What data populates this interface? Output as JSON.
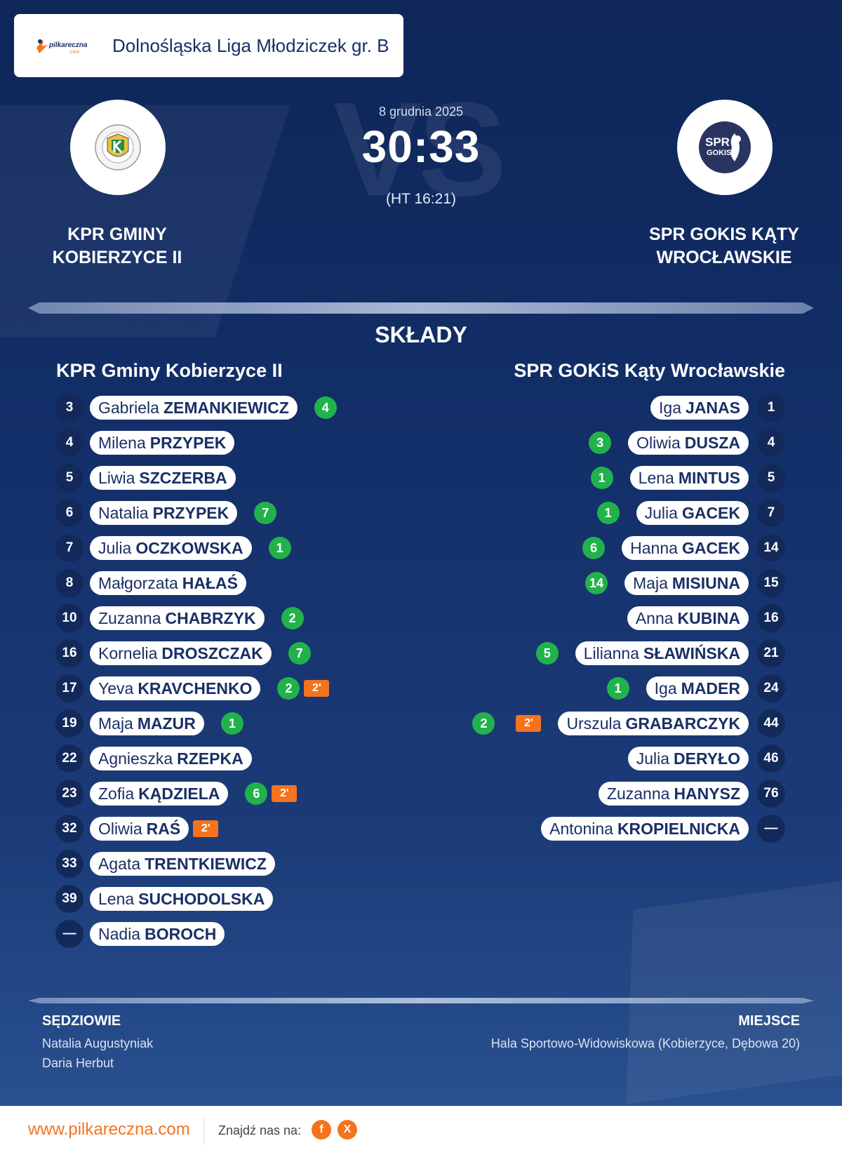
{
  "league": {
    "title": "Dolnośląska Liga Młodziczek gr. B",
    "logo_text": "pilkareczna",
    "logo_sub": ".com"
  },
  "match": {
    "date": "8 grudnia 2025",
    "score": "30:33",
    "halftime": "(HT 16:21)",
    "vs_text": "VS"
  },
  "home_team": {
    "name_line1": "KPR GMINY",
    "name_line2": "KOBIERZYCE II",
    "squad_title": "KPR Gminy Kobierzyce II"
  },
  "away_team": {
    "name_line1": "SPR GOKIS KĄTY",
    "name_line2": "WROCŁAWSKIE",
    "squad_title": "SPR GOKiS Kąty Wrocławskie",
    "logo_text1": "SPR",
    "logo_text2": "GOKIS"
  },
  "section_title": "SKŁADY",
  "home_players": [
    {
      "num": "3",
      "first": "Gabriela",
      "last": "ZEMANKIEWICZ",
      "goals": "4",
      "pen": ""
    },
    {
      "num": "4",
      "first": "Milena",
      "last": "PRZYPEK",
      "goals": "",
      "pen": ""
    },
    {
      "num": "5",
      "first": "Liwia",
      "last": "SZCZERBA",
      "goals": "",
      "pen": ""
    },
    {
      "num": "6",
      "first": "Natalia",
      "last": "PRZYPEK",
      "goals": "7",
      "pen": ""
    },
    {
      "num": "7",
      "first": "Julia",
      "last": "OCZKOWSKA",
      "goals": "1",
      "pen": ""
    },
    {
      "num": "8",
      "first": "Małgorzata",
      "last": "HAŁAŚ",
      "goals": "",
      "pen": ""
    },
    {
      "num": "10",
      "first": "Zuzanna",
      "last": "CHABRZYK",
      "goals": "2",
      "pen": ""
    },
    {
      "num": "16",
      "first": "Kornelia",
      "last": "DROSZCZAK",
      "goals": "7",
      "pen": ""
    },
    {
      "num": "17",
      "first": "Yeva",
      "last": "KRAVCHENKO",
      "goals": "2",
      "pen": "2'"
    },
    {
      "num": "19",
      "first": "Maja",
      "last": "MAZUR",
      "goals": "1",
      "pen": ""
    },
    {
      "num": "22",
      "first": "Agnieszka",
      "last": "RZEPKA",
      "goals": "",
      "pen": ""
    },
    {
      "num": "23",
      "first": "Zofia",
      "last": "KĄDZIELA",
      "goals": "6",
      "pen": "2'"
    },
    {
      "num": "32",
      "first": "Oliwia",
      "last": "RAŚ",
      "goals": "",
      "pen": "2'"
    },
    {
      "num": "33",
      "first": "Agata",
      "last": "TRENTKIEWICZ",
      "goals": "",
      "pen": ""
    },
    {
      "num": "39",
      "first": "Lena",
      "last": "SUCHODOLSKA",
      "goals": "",
      "pen": ""
    },
    {
      "num": "—",
      "first": "Nadia",
      "last": "BOROCH",
      "goals": "",
      "pen": ""
    }
  ],
  "away_players": [
    {
      "num": "1",
      "first": "Iga",
      "last": "JANAS",
      "goals": "",
      "pen": ""
    },
    {
      "num": "4",
      "first": "Oliwia",
      "last": "DUSZA",
      "goals": "3",
      "pen": ""
    },
    {
      "num": "5",
      "first": "Lena",
      "last": "MINTUS",
      "goals": "1",
      "pen": ""
    },
    {
      "num": "7",
      "first": "Julia",
      "last": "GACEK",
      "goals": "1",
      "pen": ""
    },
    {
      "num": "14",
      "first": "Hanna",
      "last": "GACEK",
      "goals": "6",
      "pen": ""
    },
    {
      "num": "15",
      "first": "Maja",
      "last": "MISIUNA",
      "goals": "14",
      "pen": ""
    },
    {
      "num": "16",
      "first": "Anna",
      "last": "KUBINA",
      "goals": "",
      "pen": ""
    },
    {
      "num": "21",
      "first": "Lilianna",
      "last": "SŁAWIŃSKA",
      "goals": "5",
      "pen": ""
    },
    {
      "num": "24",
      "first": "Iga",
      "last": "MADER",
      "goals": "1",
      "pen": ""
    },
    {
      "num": "44",
      "first": "Urszula",
      "last": "GRABARCZYK",
      "goals": "2",
      "pen": "2'"
    },
    {
      "num": "46",
      "first": "Julia",
      "last": "DERYŁO",
      "goals": "",
      "pen": ""
    },
    {
      "num": "76",
      "first": "Zuzanna",
      "last": "HANYSZ",
      "goals": "",
      "pen": ""
    },
    {
      "num": "—",
      "first": "Antonina",
      "last": "KROPIELNICKA",
      "goals": "",
      "pen": ""
    }
  ],
  "referees": {
    "title": "SĘDZIOWIE",
    "names": [
      "Natalia Augustyniak",
      "Daria Herbut"
    ]
  },
  "venue": {
    "title": "MIEJSCE",
    "text": "Hala Sportowo-Widowiskowa (Kobierzyce, Dębowa 20)"
  },
  "footer": {
    "site": "www.pilkareczna.com",
    "find_label": "Znajdź nas na:",
    "social": [
      "f",
      "X"
    ]
  },
  "colors": {
    "goal": "#22b24c",
    "penalty": "#f5731e",
    "brand": "#f5731e",
    "navy": "#1a2f66"
  }
}
